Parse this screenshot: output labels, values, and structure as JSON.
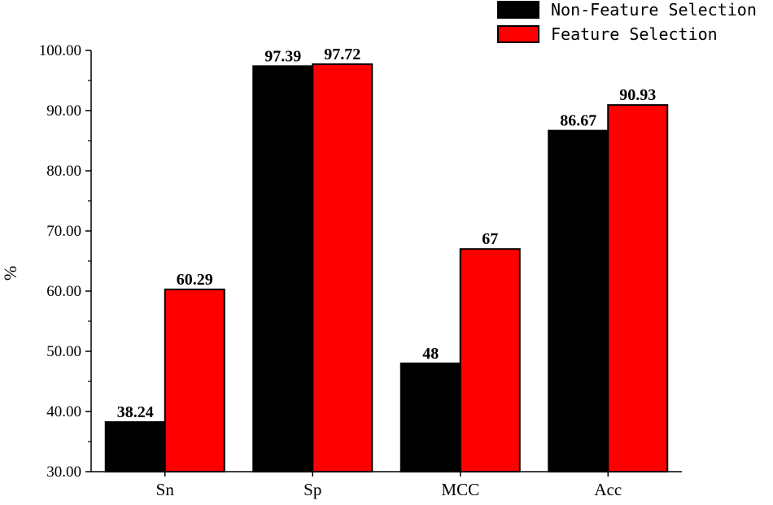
{
  "chart_data": {
    "type": "bar",
    "categories": [
      "Sn",
      "Sp",
      "MCC",
      "Acc"
    ],
    "series": [
      {
        "name": "Non-Feature Selection",
        "color": "#000000",
        "values": [
          38.24,
          97.39,
          48,
          86.67
        ],
        "labels": [
          "38.24",
          "97.39",
          "48",
          "86.67"
        ]
      },
      {
        "name": "Feature Selection",
        "color": "#ff0000",
        "values": [
          60.29,
          97.72,
          67,
          90.93
        ],
        "labels": [
          "60.29",
          "97.72",
          "67",
          "90.93"
        ]
      }
    ],
    "ylabel": "%",
    "xlabel": "",
    "ylim": [
      30,
      100
    ],
    "yticks": [
      "30.00",
      "40.00",
      "50.00",
      "60.00",
      "70.00",
      "80.00",
      "90.00",
      "100.00"
    ],
    "legend_position": "top-right",
    "grid": false
  }
}
